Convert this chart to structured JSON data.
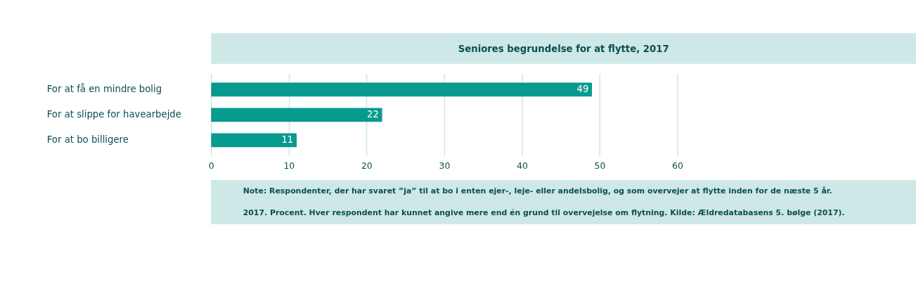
{
  "chart_data": {
    "type": "bar",
    "orientation": "horizontal",
    "title": "Seniores begrundelse for at flytte, 2017",
    "categories": [
      "For at få en mindre bolig",
      "For at slippe for havearbejde",
      "For at bo billigere"
    ],
    "values": [
      49,
      22,
      11
    ],
    "color": "#079a8f",
    "data_labels": true,
    "xlim": [
      0,
      60
    ],
    "xticks": [
      0,
      10,
      20,
      30,
      40,
      50,
      60
    ],
    "grid": "x",
    "annotations": [
      "Note: Respondenter, der har svaret ”ja” til at bo i enten ejer-, leje- eller andelsbolig, og som overvejer at flytte inden for de næste 5 år.",
      "2017. Procent. Hver respondent har kunnet angive mere end én grund til overvejelse om flytning. Kilde: Ældredatabasens 5. bølge (2017)."
    ]
  }
}
